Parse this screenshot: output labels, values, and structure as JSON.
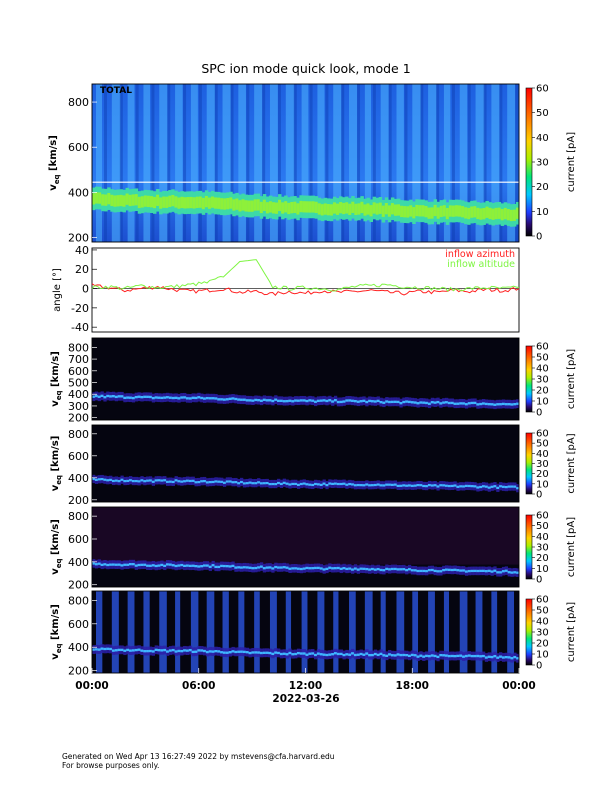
{
  "title": "SPC ion mode quick look, mode 1",
  "date_label": "2022-03-26",
  "footer": {
    "line1": "Generated on Wed Apr 13 16:27:49 2022 by mstevens@cfa.harvard.edu",
    "line2": "For browse purposes only."
  },
  "colors": {
    "spectrogram_background_top": "#1e64e6",
    "spectrogram_background_dark": "#050510",
    "beam_green": "#7ef542",
    "beam_cyan": "#46c8ff",
    "azimuth_red": "#ff2020",
    "altitude_green": "#7ef542"
  },
  "chart_data": [
    {
      "type": "heatmap",
      "panel": "total",
      "label": "TOTAL",
      "ylabel": "v",
      "ylabel_sub": "eq",
      "ylabel_unit": "[km/s]",
      "ylim": [
        180,
        880
      ],
      "yticks": [
        200,
        400,
        600,
        800
      ],
      "xticks": [
        "00:00",
        "06:00",
        "12:00",
        "18:00",
        "00:00"
      ],
      "colorbar": {
        "label": "current [pA]",
        "range": [
          0,
          60
        ],
        "ticks": [
          0,
          10,
          20,
          30,
          40,
          50,
          60
        ]
      },
      "reference_line_kms": 445,
      "beam_center_kms": [
        360,
        350,
        345,
        330,
        320,
        318,
        306,
        300,
        290
      ],
      "stripes": 27
    },
    {
      "type": "line",
      "panel": "angle",
      "ylabel": "angle [°]",
      "ylim": [
        -45,
        42
      ],
      "yticks": [
        -40,
        -20,
        0,
        20,
        40
      ],
      "series": [
        {
          "name": "inflow azimuth",
          "color": "#ff2020",
          "values": [
            3,
            1,
            -2,
            0,
            2,
            -1,
            -3,
            -2,
            0,
            -4,
            -3,
            -6,
            -3,
            -5,
            -2,
            -4,
            -3,
            -2,
            -4,
            -5,
            -3,
            -4,
            -2,
            -3,
            -1,
            -2,
            0
          ]
        },
        {
          "name": "inflow altitude",
          "color": "#7ef542",
          "values": [
            1,
            2,
            0,
            3,
            1,
            2,
            4,
            6,
            12,
            28,
            30,
            2,
            0,
            1,
            0,
            -1,
            2,
            3,
            4,
            2,
            1,
            0,
            -1,
            0,
            1,
            0,
            1
          ]
        }
      ]
    },
    {
      "type": "heatmap",
      "panel": "cup1",
      "ylabel": "v",
      "ylabel_sub": "eq",
      "ylabel_unit": "[km/s]",
      "ylim": [
        180,
        880
      ],
      "yticks": [
        200,
        300,
        400,
        500,
        600,
        700,
        800
      ],
      "colorbar": {
        "label": "current [pA]",
        "range": [
          0,
          60
        ],
        "ticks": [
          0,
          10,
          20,
          30,
          40,
          50,
          60
        ]
      }
    },
    {
      "type": "heatmap",
      "panel": "cup2",
      "ylabel": "v",
      "ylabel_sub": "eq",
      "ylabel_unit": "[km/s]",
      "ylim": [
        180,
        880
      ],
      "yticks": [
        200,
        400,
        600,
        800
      ],
      "colorbar": {
        "label": "current [pA]",
        "range": [
          0,
          60
        ],
        "ticks": [
          0,
          10,
          20,
          30,
          40,
          50,
          60
        ]
      }
    },
    {
      "type": "heatmap",
      "panel": "cup3",
      "ylabel": "v",
      "ylabel_sub": "eq",
      "ylabel_unit": "[km/s]",
      "ylim": [
        180,
        880
      ],
      "yticks": [
        200,
        400,
        600,
        800
      ],
      "colorbar": {
        "label": "current [pA]",
        "range": [
          0,
          60
        ],
        "ticks": [
          0,
          10,
          20,
          30,
          40,
          50,
          60
        ]
      }
    },
    {
      "type": "heatmap",
      "panel": "cup4",
      "ylabel": "v",
      "ylabel_sub": "eq",
      "ylabel_unit": "[km/s]",
      "ylim": [
        180,
        880
      ],
      "yticks": [
        200,
        400,
        600,
        800
      ],
      "colorbar": {
        "label": "current [pA]",
        "range": [
          0,
          60
        ],
        "ticks": [
          0,
          10,
          20,
          30,
          40,
          50,
          60
        ]
      }
    }
  ]
}
